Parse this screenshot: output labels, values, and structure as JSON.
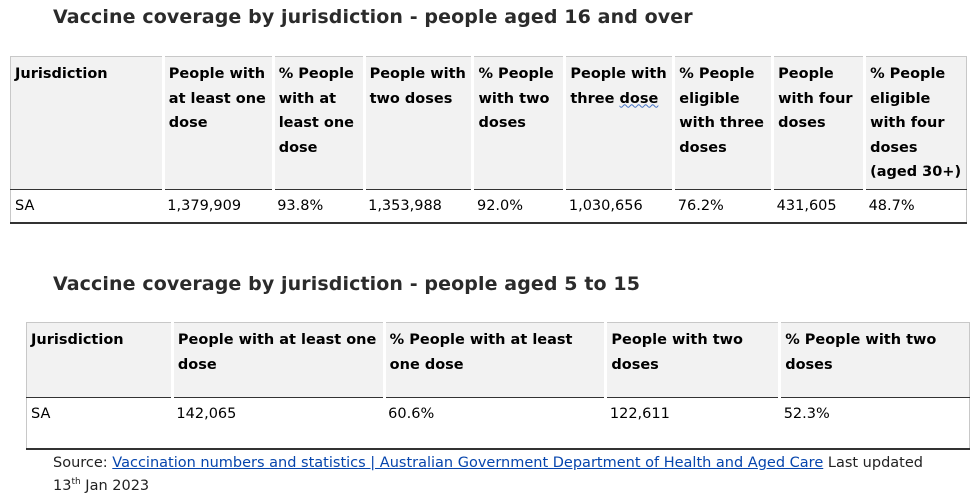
{
  "table1": {
    "title": "Vaccine coverage by jurisdiction - people aged 16 and over",
    "headers": [
      "Jurisdiction",
      "People with at least one dose",
      "% People with at least one dose",
      "People with two doses",
      "% People with two doses",
      "People with three dose",
      "% People eligible with three doses",
      "People with four doses",
      "% People eligible with four doses (aged 30+)"
    ],
    "row": [
      "SA",
      "1,379,909",
      "93.8%",
      "1,353,988",
      "92.0%",
      "1,030,656",
      "76.2%",
      "431,605",
      "48.7%"
    ]
  },
  "table2": {
    "title": "Vaccine coverage by jurisdiction - people aged 5 to 15",
    "headers": [
      "Jurisdiction",
      "People with at least one dose",
      "% People with at least one dose",
      "People with two doses",
      "% People with two doses"
    ],
    "row": [
      "SA",
      "142,065",
      "60.6%",
      "122,611",
      "52.3%"
    ]
  },
  "source": {
    "prefix": "Source:",
    "link_text": "Vaccination numbers and statistics | Australian Government Department of Health and Aged Care",
    "suffix_before_sup": "Last updated 13",
    "sup": "th",
    "suffix_after_sup": "Jan 2023"
  }
}
